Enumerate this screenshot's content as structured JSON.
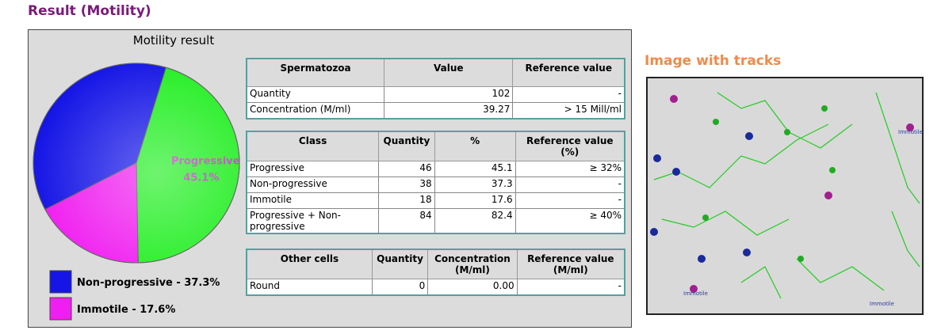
{
  "title": "Result (Motility)",
  "chart_data": {
    "type": "pie",
    "title": "Motility result",
    "categories": [
      "Progressive",
      "Non-progressive",
      "Immotile"
    ],
    "values": [
      45.1,
      37.3,
      17.6
    ],
    "value_labels": [
      "45.1%",
      null,
      null
    ],
    "colors": [
      "#22ee22",
      "#1515e6",
      "#f01ef0"
    ],
    "legend_labels": [
      null,
      "Non-progressive - 37.3%",
      "Immotile - 17.6%"
    ]
  },
  "tables": [
    {
      "header": [
        "Spermatozoa",
        "Value",
        "Reference value"
      ],
      "rows": [
        [
          "Quantity",
          "102",
          "-"
        ],
        [
          "Concentration (M/ml)",
          "39.27",
          "> 15 Mill/ml"
        ]
      ]
    },
    {
      "header": [
        "Class",
        "Quantity",
        "%",
        "Reference value (%)"
      ],
      "rows": [
        [
          "Progressive",
          "46",
          "45.1",
          "≥ 32%"
        ],
        [
          "Non-progressive",
          "38",
          "37.3",
          "-"
        ],
        [
          "Immotile",
          "18",
          "17.6",
          "-"
        ],
        [
          "Progressive + Non-progressive",
          "84",
          "82.4",
          "≥ 40%"
        ]
      ]
    },
    {
      "header": [
        "Other cells",
        "Quantity",
        "Concentration (M/ml)",
        "Reference value (M/ml)"
      ],
      "rows": [
        [
          "Round",
          "0",
          "0.00",
          "-"
        ]
      ]
    }
  ],
  "image": {
    "title": "Image with tracks",
    "labels": [
      "Immotile",
      "Immotile",
      "Immotile"
    ]
  }
}
